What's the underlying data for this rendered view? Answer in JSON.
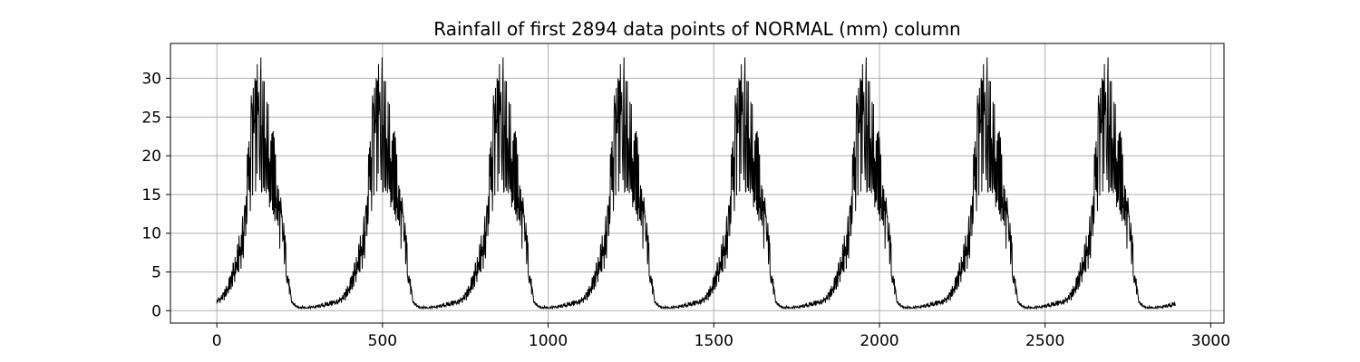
{
  "chart_data": {
    "type": "line",
    "title": "Rainfall of first 2894 data points of NORMAL (mm) column",
    "xlabel": "",
    "ylabel": "",
    "xlim": [
      -140,
      3040
    ],
    "ylim": [
      -1.6,
      34.5
    ],
    "x_ticks": [
      0,
      500,
      1000,
      1500,
      2000,
      2500,
      3000
    ],
    "x_tick_labels": [
      "0",
      "500",
      "1000",
      "1500",
      "2000",
      "2500",
      "3000"
    ],
    "y_ticks": [
      0,
      5,
      10,
      15,
      20,
      25,
      30
    ],
    "y_tick_labels": [
      "0",
      "5",
      "10",
      "15",
      "20",
      "25",
      "30"
    ],
    "grid": true,
    "line_color": "#000000",
    "n_points": 2894,
    "cycle_length": 366,
    "cycle_starts": [
      0,
      366,
      731,
      1096,
      1461,
      1827,
      2192,
      2557
    ],
    "cycle_profile": {
      "x": [
        0,
        20,
        40,
        60,
        80,
        95,
        110,
        125,
        140,
        160,
        175,
        190,
        205,
        215,
        225,
        240,
        270,
        300,
        330,
        366
      ],
      "y": [
        1.2,
        1.8,
        3.5,
        6.0,
        9.5,
        17.0,
        22.0,
        24.0,
        23.0,
        19.0,
        16.0,
        12.0,
        8.0,
        4.0,
        1.2,
        0.5,
        0.4,
        0.5,
        0.8,
        1.2
      ]
    },
    "peak_value": 32.7,
    "series": [
      {
        "values": []
      }
    ]
  }
}
